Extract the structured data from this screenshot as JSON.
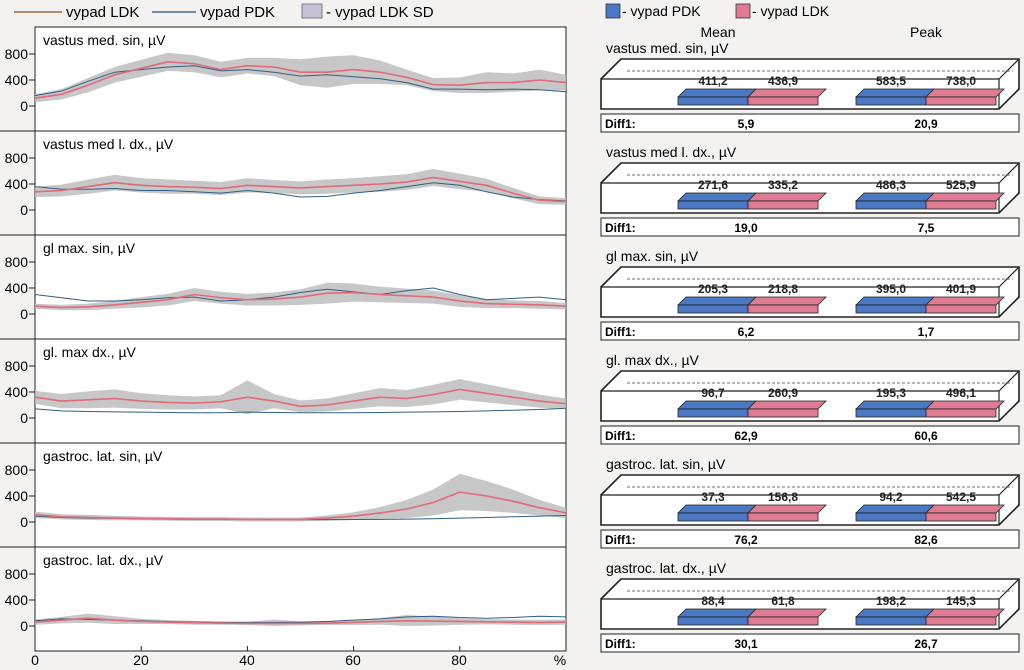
{
  "legend_left": {
    "items": [
      {
        "label": "vypad LDK",
        "color": "#b38d6a",
        "kind": "line"
      },
      {
        "label": "vypad PDK",
        "color": "#3f6d8f",
        "kind": "line"
      },
      {
        "label": "- vypad LDK SD",
        "color": "#c7c0d8",
        "kind": "box"
      }
    ]
  },
  "legend_right": {
    "items": [
      {
        "label": "- vypad PDK",
        "color": "#4a78c2"
      },
      {
        "label": "- vypad LDK",
        "color": "#e07b94"
      }
    ],
    "col_mean": "Mean",
    "col_peak": "Peak",
    "diff_label": "Diff1:"
  },
  "x_axis": {
    "ticks": [
      "0",
      "20",
      "40",
      "60",
      "80"
    ],
    "unit": "%"
  },
  "colors": {
    "ldk": "#e06a78",
    "pdk": "#2f5f85",
    "sd": "#bdbdbd",
    "bar_pdk": "#4a78c2",
    "bar_ldk": "#e07b94"
  },
  "chart_data": [
    {
      "type": "line",
      "title": "vastus med. sin, µV",
      "yticks": [
        0,
        400,
        800
      ],
      "ylim": [
        0,
        1050
      ],
      "xlim": [
        0,
        100
      ],
      "x": [
        0,
        5,
        10,
        15,
        20,
        25,
        30,
        35,
        40,
        45,
        50,
        55,
        60,
        65,
        70,
        75,
        80,
        85,
        90,
        95,
        100
      ],
      "series": [
        {
          "name": "vypad LDK",
          "values": [
            120,
            180,
            320,
            480,
            580,
            680,
            650,
            560,
            620,
            600,
            520,
            520,
            560,
            520,
            440,
            330,
            320,
            360,
            360,
            400,
            360
          ]
        },
        {
          "name": "vypad PDK",
          "values": [
            160,
            230,
            380,
            520,
            560,
            600,
            620,
            540,
            560,
            520,
            460,
            480,
            450,
            420,
            360,
            260,
            260,
            250,
            260,
            250,
            220
          ]
        }
      ],
      "sd_band": [
        60,
        80,
        110,
        120,
        130,
        140,
        130,
        120,
        120,
        140,
        200,
        240,
        220,
        180,
        120,
        100,
        120,
        160,
        140,
        160,
        120
      ],
      "mean": {
        "PDK": "411,2",
        "LDK": "436,9"
      },
      "peak": {
        "PDK": "583,5",
        "LDK": "738,0"
      },
      "diff_mean": "5,9",
      "diff_peak": "20,9"
    },
    {
      "type": "line",
      "title": "vastus med l. dx., µV",
      "yticks": [
        0,
        400,
        800
      ],
      "ylim": [
        0,
        1050
      ],
      "xlim": [
        0,
        100
      ],
      "x": [
        0,
        5,
        10,
        15,
        20,
        25,
        30,
        35,
        40,
        45,
        50,
        55,
        60,
        65,
        70,
        75,
        80,
        85,
        90,
        95,
        100
      ],
      "series": [
        {
          "name": "vypad LDK",
          "values": [
            280,
            300,
            360,
            420,
            380,
            360,
            350,
            330,
            380,
            360,
            340,
            360,
            380,
            400,
            430,
            500,
            440,
            380,
            260,
            150,
            130
          ]
        },
        {
          "name": "vypad PDK",
          "values": [
            360,
            320,
            320,
            330,
            300,
            300,
            280,
            260,
            300,
            260,
            200,
            210,
            260,
            300,
            360,
            420,
            380,
            280,
            200,
            160,
            140
          ]
        }
      ],
      "sd_band": [
        80,
        90,
        110,
        120,
        110,
        110,
        100,
        100,
        110,
        100,
        100,
        110,
        110,
        120,
        120,
        130,
        120,
        100,
        80,
        60,
        50
      ],
      "mean": {
        "PDK": "271,6",
        "LDK": "335,2"
      },
      "peak": {
        "PDK": "486,3",
        "LDK": "525,9"
      },
      "diff_mean": "19,0",
      "diff_peak": "7,5"
    },
    {
      "type": "line",
      "title": "gl max. sin, µV",
      "yticks": [
        0,
        400,
        800
      ],
      "ylim": [
        0,
        1050
      ],
      "xlim": [
        0,
        100
      ],
      "x": [
        0,
        5,
        10,
        15,
        20,
        25,
        30,
        35,
        40,
        45,
        50,
        55,
        60,
        65,
        70,
        75,
        80,
        85,
        90,
        95,
        100
      ],
      "series": [
        {
          "name": "vypad LDK",
          "values": [
            120,
            100,
            110,
            140,
            180,
            220,
            300,
            250,
            220,
            230,
            260,
            320,
            330,
            300,
            280,
            260,
            200,
            160,
            150,
            140,
            120
          ]
        },
        {
          "name": "vypad PDK",
          "values": [
            300,
            250,
            200,
            200,
            220,
            250,
            260,
            200,
            220,
            260,
            330,
            380,
            340,
            300,
            360,
            400,
            300,
            220,
            240,
            260,
            220
          ]
        }
      ],
      "sd_band": [
        40,
        40,
        50,
        60,
        80,
        90,
        100,
        90,
        90,
        100,
        120,
        160,
        140,
        120,
        110,
        100,
        90,
        70,
        60,
        60,
        50
      ],
      "mean": {
        "PDK": "205,3",
        "LDK": "218,8"
      },
      "peak": {
        "PDK": "395,0",
        "LDK": "401,9"
      },
      "diff_mean": "6,2",
      "diff_peak": "1,7"
    },
    {
      "type": "line",
      "title": "gl. max dx., µV",
      "yticks": [
        0,
        400,
        800
      ],
      "ylim": [
        0,
        1050
      ],
      "xlim": [
        0,
        100
      ],
      "x": [
        0,
        5,
        10,
        15,
        20,
        25,
        30,
        35,
        40,
        45,
        50,
        55,
        60,
        65,
        70,
        75,
        80,
        85,
        90,
        95,
        100
      ],
      "series": [
        {
          "name": "vypad LDK",
          "values": [
            320,
            260,
            280,
            300,
            260,
            240,
            230,
            250,
            320,
            260,
            180,
            200,
            260,
            320,
            300,
            360,
            440,
            380,
            320,
            260,
            220
          ]
        },
        {
          "name": "vypad PDK",
          "values": [
            140,
            110,
            100,
            95,
            90,
            85,
            80,
            80,
            90,
            85,
            80,
            80,
            80,
            85,
            90,
            95,
            100,
            110,
            120,
            130,
            150
          ]
        }
      ],
      "sd_band": [
        100,
        110,
        130,
        140,
        120,
        110,
        100,
        100,
        260,
        110,
        90,
        100,
        120,
        140,
        130,
        150,
        160,
        140,
        120,
        100,
        80
      ],
      "mean": {
        "PDK": "96,7",
        "LDK": "260,9"
      },
      "peak": {
        "PDK": "195,3",
        "LDK": "496,1"
      },
      "diff_mean": "62,9",
      "diff_peak": "60,6"
    },
    {
      "type": "line",
      "title": "gastroc. lat. sin, µV",
      "yticks": [
        0,
        400,
        800
      ],
      "ylim": [
        0,
        1050
      ],
      "xlim": [
        0,
        100
      ],
      "x": [
        0,
        5,
        10,
        15,
        20,
        25,
        30,
        35,
        40,
        45,
        50,
        55,
        60,
        65,
        70,
        75,
        80,
        85,
        90,
        95,
        100
      ],
      "series": [
        {
          "name": "vypad LDK",
          "values": [
            110,
            80,
            70,
            60,
            55,
            50,
            45,
            45,
            40,
            40,
            40,
            60,
            90,
            140,
            200,
            300,
            460,
            400,
            320,
            220,
            140
          ]
        },
        {
          "name": "vypad PDK",
          "values": [
            90,
            70,
            60,
            55,
            50,
            45,
            40,
            40,
            40,
            38,
            36,
            36,
            38,
            40,
            44,
            50,
            60,
            70,
            80,
            90,
            100
          ]
        }
      ],
      "sd_band": [
        50,
        40,
        40,
        35,
        30,
        30,
        30,
        30,
        30,
        30,
        30,
        40,
        60,
        90,
        140,
        200,
        280,
        230,
        180,
        120,
        80
      ],
      "mean": {
        "PDK": "37,3",
        "LDK": "156,8"
      },
      "peak": {
        "PDK": "94,2",
        "LDK": "542,5"
      },
      "diff_mean": "76,2",
      "diff_peak": "82,6"
    },
    {
      "type": "line",
      "title": "gastroc. lat. dx., µV",
      "yticks": [
        0,
        400,
        800
      ],
      "ylim": [
        0,
        1050
      ],
      "xlim": [
        0,
        100
      ],
      "x": [
        0,
        5,
        10,
        15,
        20,
        25,
        30,
        35,
        40,
        45,
        50,
        55,
        60,
        65,
        70,
        75,
        80,
        85,
        90,
        95,
        100
      ],
      "series": [
        {
          "name": "vypad LDK",
          "values": [
            60,
            90,
            120,
            90,
            70,
            60,
            50,
            45,
            40,
            40,
            40,
            45,
            55,
            70,
            80,
            75,
            70,
            65,
            60,
            55,
            60
          ]
        },
        {
          "name": "vypad PDK",
          "values": [
            80,
            110,
            100,
            90,
            80,
            70,
            60,
            55,
            55,
            55,
            60,
            70,
            90,
            110,
            140,
            150,
            130,
            120,
            130,
            150,
            140
          ]
        }
      ],
      "sd_band": [
        40,
        50,
        70,
        60,
        40,
        30,
        30,
        25,
        25,
        60,
        30,
        30,
        40,
        50,
        90,
        70,
        50,
        40,
        40,
        40,
        40
      ],
      "mean": {
        "PDK": "88,4",
        "LDK": "61,8"
      },
      "peak": {
        "PDK": "198,2",
        "LDK": "145,3"
      },
      "diff_mean": "30,1",
      "diff_peak": "26,7"
    }
  ]
}
